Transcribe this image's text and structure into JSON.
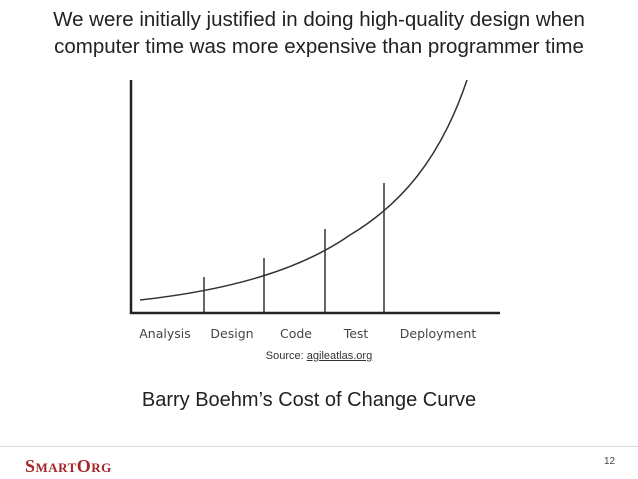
{
  "title": {
    "lines": [
      "We were initially justified in doing high-quality design when",
      "computer time was more expensive than programmer time"
    ]
  },
  "figure": {
    "categories": [
      "Analysis",
      "Design",
      "Code",
      "Test",
      "Deployment"
    ]
  },
  "source": {
    "label": "Source:",
    "link": "agileatlas.org"
  },
  "caption": "Barry Boehm’s Cost of Change Curve",
  "footer": {
    "logo": "SmartOrg",
    "page_number": "12"
  }
}
